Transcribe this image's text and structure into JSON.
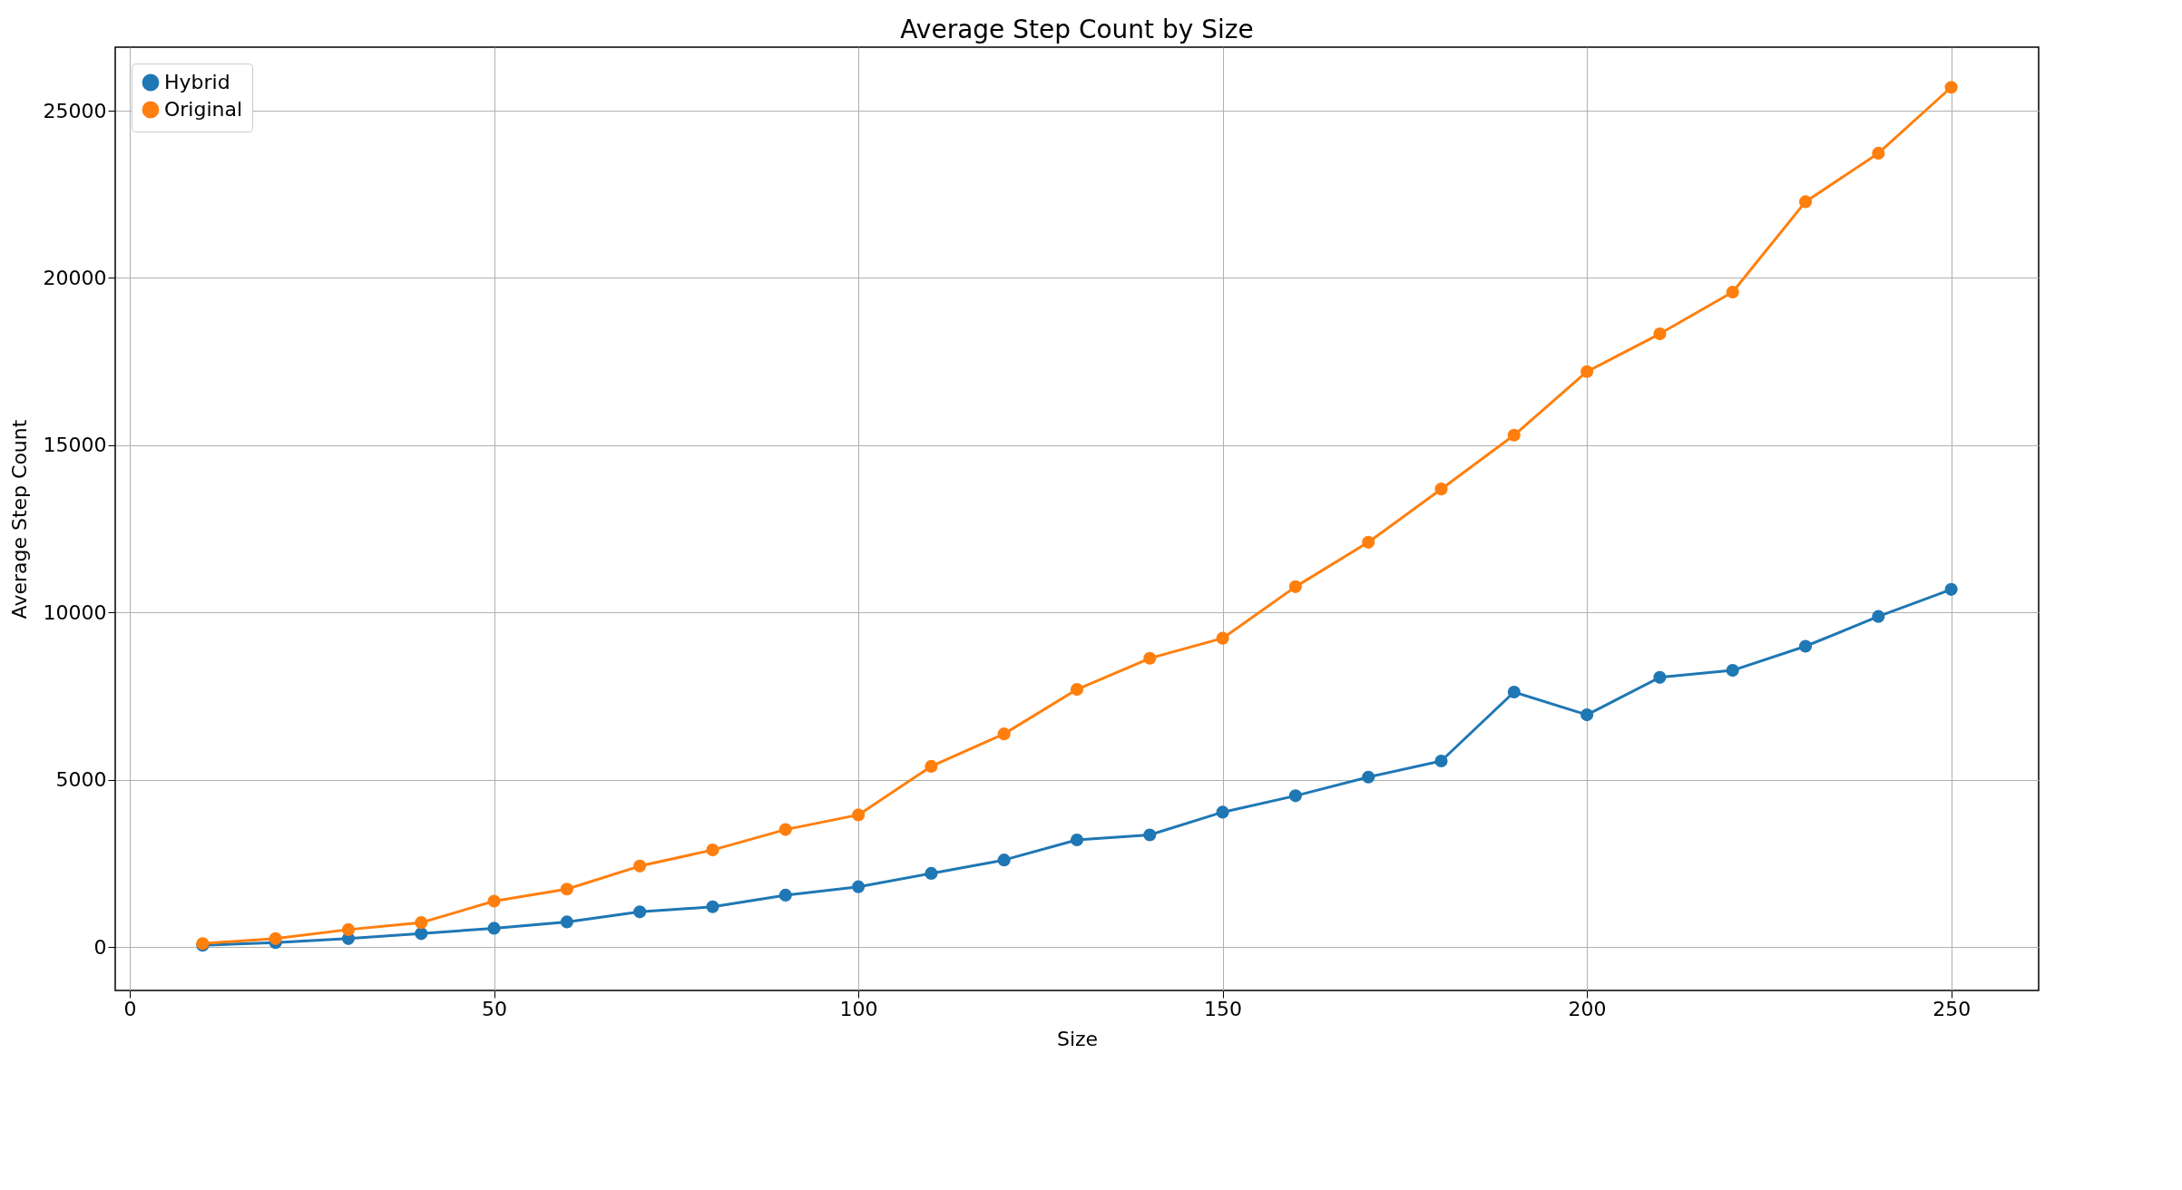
{
  "chart_data": {
    "type": "line",
    "title": "Average Step Count by Size",
    "xlabel": "Size",
    "ylabel": "Average Step Count",
    "x": [
      10,
      20,
      30,
      40,
      50,
      60,
      70,
      80,
      90,
      100,
      110,
      120,
      130,
      140,
      150,
      160,
      170,
      180,
      190,
      200,
      210,
      220,
      230,
      240,
      250
    ],
    "series": [
      {
        "name": "Hybrid",
        "color": "#1f77b4",
        "values": [
          50,
          130,
          250,
          400,
          560,
          750,
          1050,
          1200,
          1550,
          1800,
          2200,
          2600,
          3200,
          3350,
          4030,
          4520,
          5080,
          5560,
          7620,
          6940,
          8060,
          8270,
          8990,
          9880,
          10690
        ]
      },
      {
        "name": "Original",
        "color": "#ff7f0e",
        "values": [
          100,
          250,
          520,
          730,
          1370,
          1730,
          2420,
          2900,
          3510,
          3950,
          5400,
          6370,
          7700,
          8630,
          9230,
          10770,
          12100,
          13690,
          15300,
          17200,
          18330,
          19580,
          22280,
          23730,
          25700
        ]
      }
    ],
    "xlim": [
      -2,
      262
    ],
    "xticks": [
      0,
      50,
      100,
      150,
      200,
      250
    ],
    "ylim": [
      -1300,
      26900
    ],
    "yticks": [
      0,
      5000,
      10000,
      15000,
      20000,
      25000
    ],
    "grid": true,
    "legend": "top left",
    "marker": "circle",
    "line_style": "solid"
  }
}
